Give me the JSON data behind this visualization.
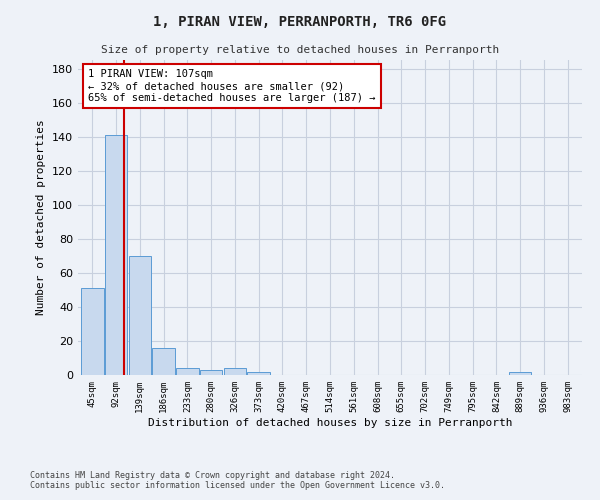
{
  "title": "1, PIRAN VIEW, PERRANPORTH, TR6 0FG",
  "subtitle": "Size of property relative to detached houses in Perranporth",
  "xlabel": "Distribution of detached houses by size in Perranporth",
  "ylabel": "Number of detached properties",
  "bar_labels": [
    "45sqm",
    "92sqm",
    "139sqm",
    "186sqm",
    "233sqm",
    "280sqm",
    "326sqm",
    "373sqm",
    "420sqm",
    "467sqm",
    "514sqm",
    "561sqm",
    "608sqm",
    "655sqm",
    "702sqm",
    "749sqm",
    "795sqm",
    "842sqm",
    "889sqm",
    "936sqm",
    "983sqm"
  ],
  "bar_values": [
    51,
    141,
    70,
    16,
    4,
    3,
    4,
    2,
    0,
    0,
    0,
    0,
    0,
    0,
    0,
    0,
    0,
    0,
    2,
    0,
    0
  ],
  "bar_color": "#c8d9ee",
  "bar_edge_color": "#5b9bd5",
  "ylim": [
    0,
    185
  ],
  "yticks": [
    0,
    20,
    40,
    60,
    80,
    100,
    120,
    140,
    160,
    180
  ],
  "vline_x_index": 1.34,
  "annotation_text": "1 PIRAN VIEW: 107sqm\n← 32% of detached houses are smaller (92)\n65% of semi-detached houses are larger (187) →",
  "annotation_box_color": "#ffffff",
  "annotation_box_edge": "#cc0000",
  "vline_color": "#cc0000",
  "footer_line1": "Contains HM Land Registry data © Crown copyright and database right 2024.",
  "footer_line2": "Contains public sector information licensed under the Open Government Licence v3.0.",
  "bg_color": "#eef2f8",
  "plot_bg_color": "#eef2f8",
  "grid_color": "#c8d0de"
}
